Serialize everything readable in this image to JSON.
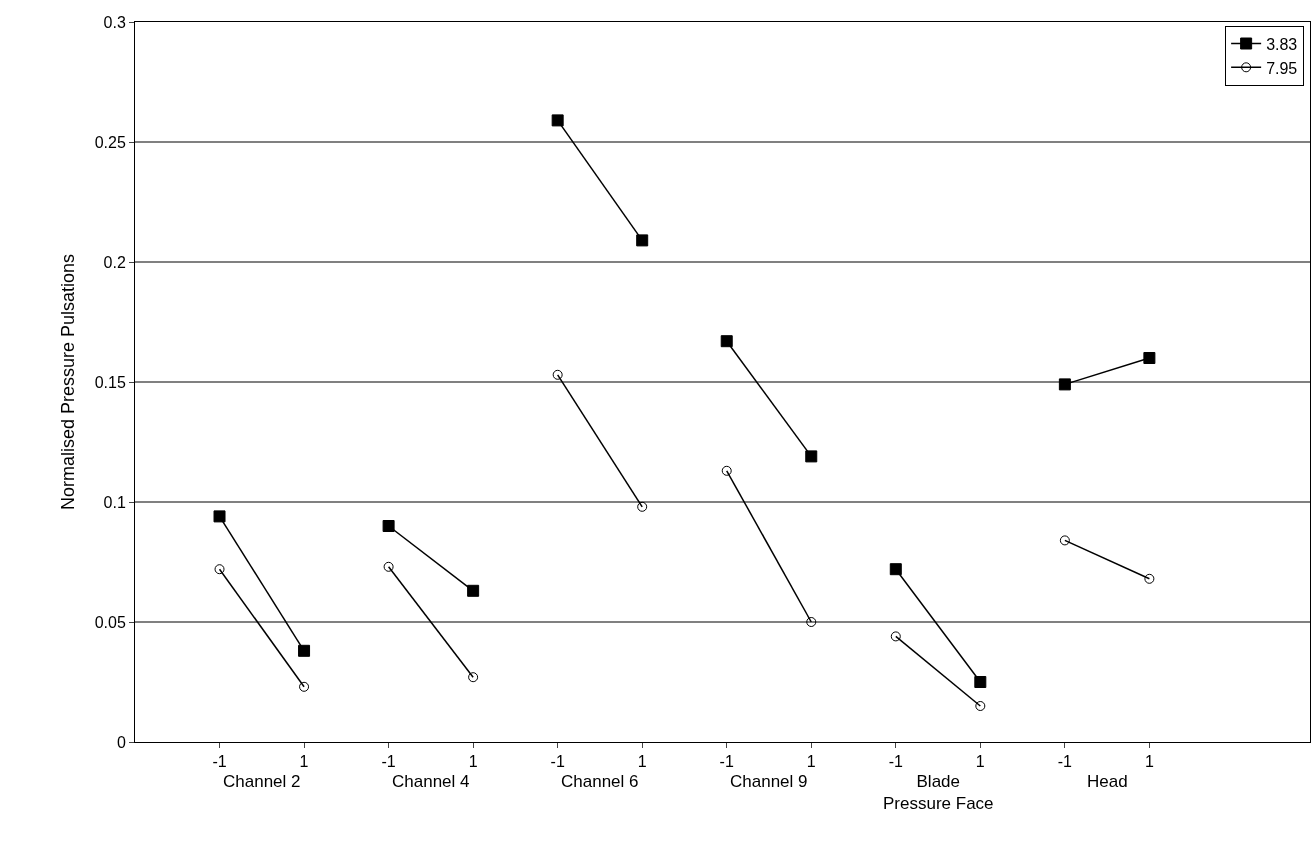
{
  "chart_data": {
    "type": "line",
    "ylabel": "Normalised Pressure Pulsations",
    "categories": [
      "-1",
      "1",
      "-1",
      "1",
      "-1",
      "1",
      "-1",
      "1",
      "-1",
      "1",
      "-1",
      "1"
    ],
    "annotations": [
      "Channel 2",
      "Channel 4",
      "Channel 6",
      "Channel 9",
      "Blade\nPressure Face",
      "Head"
    ],
    "series": [
      {
        "name": "3.83",
        "color": "#000000",
        "marker": "square",
        "values": [
          0.094,
          0.038,
          0.09,
          0.063,
          0.259,
          0.209,
          0.167,
          0.119,
          0.072,
          0.025,
          0.149,
          0.16
        ]
      },
      {
        "name": "7.95",
        "color": "#000000",
        "marker": "circle",
        "values": [
          0.072,
          0.023,
          0.073,
          0.027,
          0.153,
          0.098,
          0.113,
          0.05,
          0.044,
          0.015,
          0.084,
          0.068
        ]
      }
    ],
    "ylim": [
      0,
      0.3
    ],
    "yticks": [
      0,
      0.05,
      0.1,
      0.15,
      0.2,
      0.25,
      0.3
    ],
    "grid": "y",
    "legend": "top right"
  }
}
